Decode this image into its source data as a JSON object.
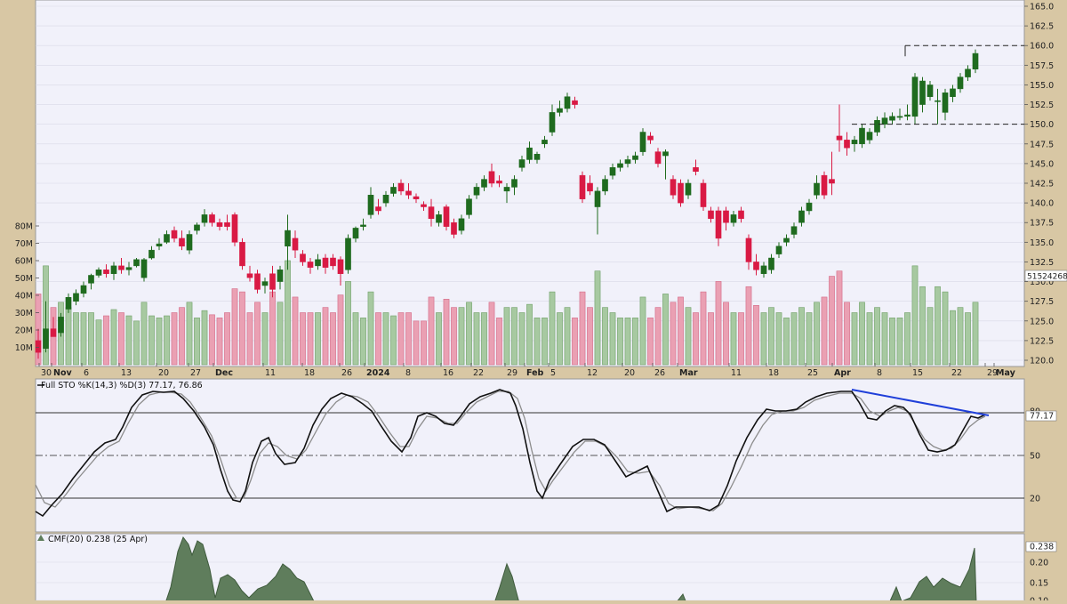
{
  "colors": {
    "frame": "#d8c7a4",
    "panel_bg": "#f1f1fa",
    "grid": "#d9d9e6",
    "up": "#1f6b1f",
    "down": "#d91a44",
    "vol_up": "#a7c9a1",
    "vol_down": "#eaa0b3",
    "stoch_k": "#111111",
    "stoch_d": "#8c8c8c",
    "trendline": "#1f3fd9",
    "cmf_fill": "#5f7d5c"
  },
  "chart_data": [
    {
      "type": "candlestick",
      "y_ticks": [
        "165.0",
        "162.5",
        "160.0",
        "157.5",
        "155.0",
        "152.5",
        "150.0",
        "147.5",
        "145.0",
        "142.5",
        "140.0",
        "137.5",
        "135.0",
        "132.5",
        "130.0",
        "127.5",
        "125.0",
        "122.5",
        "120.0"
      ],
      "ylim": [
        119.5,
        166.5
      ],
      "x_ticks": [
        "30",
        "Nov",
        "6",
        "13",
        "20",
        "27",
        "Dec",
        "11",
        "18",
        "26",
        "2024",
        "8",
        "16",
        "22",
        "29",
        "Feb",
        "5",
        "12",
        "20",
        "26",
        "Mar",
        "11",
        "18",
        "25",
        "Apr",
        "8",
        "15",
        "22",
        "29",
        "May"
      ],
      "volume_ticks": [
        "80M",
        "70M",
        "60M",
        "50M",
        "40M",
        "30M",
        "20M",
        "10M"
      ],
      "volume_ylim": [
        0,
        90
      ],
      "last_volume_label": "51524268",
      "levels": [
        160.0,
        150.0
      ],
      "candles": [
        {
          "date": "Oct 26",
          "o": 122.5,
          "h": 124.0,
          "l": 120.2,
          "c": 121.0
        },
        {
          "date": "Oct 27",
          "o": 121.5,
          "h": 127.5,
          "l": 121.0,
          "c": 124.0
        },
        {
          "date": "Oct 30",
          "o": 124.0,
          "h": 125.5,
          "l": 123.0,
          "c": 123.0
        },
        {
          "date": "Oct 31",
          "o": 123.5,
          "h": 126.0,
          "l": 123.0,
          "c": 125.5
        },
        {
          "date": "Nov 1",
          "o": 126.5,
          "h": 128.5,
          "l": 126.0,
          "c": 128.0
        },
        {
          "date": "Nov 2",
          "o": 127.5,
          "h": 129.0,
          "l": 127.0,
          "c": 128.5
        },
        {
          "date": "Nov 3",
          "o": 128.5,
          "h": 130.0,
          "l": 128.0,
          "c": 129.5
        },
        {
          "date": "Nov 6",
          "o": 129.8,
          "h": 131.0,
          "l": 129.0,
          "c": 130.8
        },
        {
          "date": "Nov 7",
          "o": 130.8,
          "h": 131.8,
          "l": 130.5,
          "c": 131.5
        },
        {
          "date": "Nov 8",
          "o": 131.5,
          "h": 132.2,
          "l": 130.5,
          "c": 131.0
        },
        {
          "date": "Nov 9",
          "o": 131.0,
          "h": 132.5,
          "l": 130.2,
          "c": 132.0
        },
        {
          "date": "Nov 10",
          "o": 132.0,
          "h": 133.0,
          "l": 131.0,
          "c": 131.5
        },
        {
          "date": "Nov 13",
          "o": 131.5,
          "h": 132.5,
          "l": 130.8,
          "c": 131.8
        },
        {
          "date": "Nov 14",
          "o": 132.0,
          "h": 133.0,
          "l": 131.8,
          "c": 132.8
        },
        {
          "date": "Nov 15",
          "o": 130.5,
          "h": 133.0,
          "l": 130.0,
          "c": 132.8
        },
        {
          "date": "Nov 16",
          "o": 133.0,
          "h": 134.5,
          "l": 132.8,
          "c": 134.0
        },
        {
          "date": "Nov 17",
          "o": 134.5,
          "h": 135.5,
          "l": 134.0,
          "c": 134.8
        },
        {
          "date": "Nov 20",
          "o": 135.0,
          "h": 136.5,
          "l": 134.8,
          "c": 136.0
        },
        {
          "date": "Nov 21",
          "o": 136.5,
          "h": 137.0,
          "l": 135.0,
          "c": 135.5
        },
        {
          "date": "Nov 22",
          "o": 135.5,
          "h": 136.5,
          "l": 134.0,
          "c": 134.5
        },
        {
          "date": "Nov 24",
          "o": 134.0,
          "h": 136.5,
          "l": 133.5,
          "c": 136.0
        },
        {
          "date": "Nov 27",
          "o": 136.5,
          "h": 137.5,
          "l": 136.0,
          "c": 137.2
        },
        {
          "date": "Nov 28",
          "o": 137.5,
          "h": 139.2,
          "l": 137.0,
          "c": 138.5
        },
        {
          "date": "Nov 29",
          "o": 138.5,
          "h": 138.8,
          "l": 137.0,
          "c": 137.5
        },
        {
          "date": "Nov 30",
          "o": 137.5,
          "h": 138.0,
          "l": 136.5,
          "c": 137.0
        },
        {
          "date": "Dec 1",
          "o": 137.5,
          "h": 138.5,
          "l": 136.5,
          "c": 137.0
        },
        {
          "date": "Dec 4",
          "o": 138.5,
          "h": 138.8,
          "l": 134.5,
          "c": 135.0
        },
        {
          "date": "Dec 5",
          "o": 135.0,
          "h": 135.5,
          "l": 131.5,
          "c": 132.0
        },
        {
          "date": "Dec 6",
          "o": 131.0,
          "h": 132.0,
          "l": 130.0,
          "c": 130.5
        },
        {
          "date": "Dec 7",
          "o": 131.0,
          "h": 131.5,
          "l": 128.5,
          "c": 129.0
        },
        {
          "date": "Dec 8",
          "o": 129.5,
          "h": 130.5,
          "l": 128.5,
          "c": 130.0
        },
        {
          "date": "Dec 11",
          "o": 131.0,
          "h": 132.0,
          "l": 128.0,
          "c": 129.0
        },
        {
          "date": "Dec 12",
          "o": 130.0,
          "h": 132.0,
          "l": 129.0,
          "c": 131.5
        },
        {
          "date": "Dec 13",
          "o": 134.5,
          "h": 138.5,
          "l": 131.5,
          "c": 136.5
        },
        {
          "date": "Dec 14",
          "o": 135.5,
          "h": 136.5,
          "l": 133.0,
          "c": 134.0
        },
        {
          "date": "Dec 15",
          "o": 133.5,
          "h": 134.0,
          "l": 132.0,
          "c": 132.5
        },
        {
          "date": "Dec 18",
          "o": 132.5,
          "h": 133.0,
          "l": 131.0,
          "c": 131.8
        },
        {
          "date": "Dec 19",
          "o": 132.0,
          "h": 133.5,
          "l": 131.5,
          "c": 132.8
        },
        {
          "date": "Dec 20",
          "o": 133.0,
          "h": 133.5,
          "l": 131.0,
          "c": 131.8
        },
        {
          "date": "Dec 21",
          "o": 133.0,
          "h": 133.5,
          "l": 131.5,
          "c": 132.0
        },
        {
          "date": "Dec 22",
          "o": 132.8,
          "h": 133.2,
          "l": 129.5,
          "c": 131.0
        },
        {
          "date": "Dec 26",
          "o": 131.5,
          "h": 136.0,
          "l": 131.0,
          "c": 135.5
        },
        {
          "date": "Dec 27",
          "o": 135.5,
          "h": 137.0,
          "l": 135.0,
          "c": 136.8
        },
        {
          "date": "Dec 28",
          "o": 137.0,
          "h": 138.0,
          "l": 136.5,
          "c": 137.2
        },
        {
          "date": "Dec 29",
          "o": 138.5,
          "h": 142.0,
          "l": 138.0,
          "c": 141.0
        },
        {
          "date": "Jan 2",
          "o": 139.5,
          "h": 140.5,
          "l": 138.5,
          "c": 139.0
        },
        {
          "date": "Jan 3",
          "o": 140.0,
          "h": 141.5,
          "l": 139.5,
          "c": 141.0
        },
        {
          "date": "Jan 4",
          "o": 141.2,
          "h": 142.5,
          "l": 140.8,
          "c": 142.0
        },
        {
          "date": "Jan 5",
          "o": 142.5,
          "h": 143.0,
          "l": 141.0,
          "c": 141.5
        },
        {
          "date": "Jan 8",
          "o": 141.5,
          "h": 142.5,
          "l": 140.5,
          "c": 141.0
        },
        {
          "date": "Jan 9",
          "o": 140.8,
          "h": 141.2,
          "l": 140.0,
          "c": 140.5
        },
        {
          "date": "Jan 10",
          "o": 139.8,
          "h": 140.2,
          "l": 139.0,
          "c": 139.5
        },
        {
          "date": "Jan 11",
          "o": 139.5,
          "h": 140.5,
          "l": 137.0,
          "c": 138.0
        },
        {
          "date": "Jan 12",
          "o": 137.5,
          "h": 139.0,
          "l": 137.0,
          "c": 138.5
        },
        {
          "date": "Jan 16",
          "o": 139.5,
          "h": 139.8,
          "l": 136.5,
          "c": 137.0
        },
        {
          "date": "Jan 17",
          "o": 137.5,
          "h": 138.0,
          "l": 135.5,
          "c": 136.0
        },
        {
          "date": "Jan 18",
          "o": 136.5,
          "h": 138.5,
          "l": 136.0,
          "c": 138.0
        },
        {
          "date": "Jan 19",
          "o": 138.5,
          "h": 141.0,
          "l": 138.0,
          "c": 140.5
        },
        {
          "date": "Jan 22",
          "o": 141.0,
          "h": 142.5,
          "l": 140.5,
          "c": 142.0
        },
        {
          "date": "Jan 23",
          "o": 142.0,
          "h": 143.5,
          "l": 141.5,
          "c": 143.0
        },
        {
          "date": "Jan 24",
          "o": 144.0,
          "h": 145.0,
          "l": 142.0,
          "c": 142.5
        },
        {
          "date": "Jan 25",
          "o": 142.8,
          "h": 143.5,
          "l": 142.0,
          "c": 142.5
        },
        {
          "date": "Jan 26",
          "o": 141.5,
          "h": 142.5,
          "l": 140.0,
          "c": 142.0
        },
        {
          "date": "Jan 29",
          "o": 142.0,
          "h": 143.5,
          "l": 141.0,
          "c": 143.0
        },
        {
          "date": "Jan 30",
          "o": 144.5,
          "h": 146.0,
          "l": 144.0,
          "c": 145.5
        },
        {
          "date": "Jan 31",
          "o": 145.5,
          "h": 147.8,
          "l": 145.0,
          "c": 147.0
        },
        {
          "date": "Feb 1",
          "o": 145.5,
          "h": 146.5,
          "l": 145.0,
          "c": 146.2
        },
        {
          "date": "Feb 2",
          "o": 147.5,
          "h": 148.5,
          "l": 147.0,
          "c": 148.0
        },
        {
          "date": "Feb 5",
          "o": 149.0,
          "h": 152.5,
          "l": 148.5,
          "c": 151.5
        },
        {
          "date": "Feb 6",
          "o": 151.5,
          "h": 153.0,
          "l": 151.0,
          "c": 152.0
        },
        {
          "date": "Feb 7",
          "o": 152.0,
          "h": 154.0,
          "l": 151.5,
          "c": 153.5
        },
        {
          "date": "Feb 8",
          "o": 153.0,
          "h": 153.5,
          "l": 152.0,
          "c": 152.5
        },
        {
          "date": "Feb 9",
          "o": 143.5,
          "h": 144.0,
          "l": 140.0,
          "c": 140.5
        },
        {
          "date": "Feb 12",
          "o": 142.5,
          "h": 143.5,
          "l": 141.0,
          "c": 141.5
        },
        {
          "date": "Feb 13",
          "o": 139.5,
          "h": 142.0,
          "l": 136.0,
          "c": 141.5
        },
        {
          "date": "Feb 14",
          "o": 141.5,
          "h": 143.5,
          "l": 141.0,
          "c": 143.0
        },
        {
          "date": "Feb 15",
          "o": 143.5,
          "h": 145.0,
          "l": 143.0,
          "c": 144.5
        },
        {
          "date": "Feb 16",
          "o": 144.5,
          "h": 145.5,
          "l": 144.0,
          "c": 145.0
        },
        {
          "date": "Feb 20",
          "o": 145.0,
          "h": 146.0,
          "l": 144.5,
          "c": 145.5
        },
        {
          "date": "Feb 21",
          "o": 145.5,
          "h": 146.5,
          "l": 145.0,
          "c": 146.0
        },
        {
          "date": "Feb 22",
          "o": 146.5,
          "h": 149.5,
          "l": 146.0,
          "c": 149.0
        },
        {
          "date": "Feb 23",
          "o": 148.5,
          "h": 149.0,
          "l": 147.5,
          "c": 148.0
        },
        {
          "date": "Feb 26",
          "o": 146.5,
          "h": 147.0,
          "l": 144.5,
          "c": 145.0
        },
        {
          "date": "Feb 27",
          "o": 146.0,
          "h": 146.8,
          "l": 143.0,
          "c": 146.5
        },
        {
          "date": "Feb 28",
          "o": 143.0,
          "h": 143.5,
          "l": 140.5,
          "c": 141.0
        },
        {
          "date": "Feb 29",
          "o": 142.5,
          "h": 143.0,
          "l": 139.5,
          "c": 140.0
        },
        {
          "date": "Mar 1",
          "o": 141.0,
          "h": 143.0,
          "l": 140.5,
          "c": 142.5
        },
        {
          "date": "Mar 4",
          "o": 144.5,
          "h": 145.5,
          "l": 143.5,
          "c": 144.0
        },
        {
          "date": "Mar 5",
          "o": 142.5,
          "h": 143.0,
          "l": 139.0,
          "c": 139.5
        },
        {
          "date": "Mar 6",
          "o": 139.0,
          "h": 139.5,
          "l": 137.5,
          "c": 138.0
        },
        {
          "date": "Mar 7",
          "o": 139.0,
          "h": 139.5,
          "l": 134.5,
          "c": 135.5
        },
        {
          "date": "Mar 8",
          "o": 139.0,
          "h": 139.5,
          "l": 136.5,
          "c": 137.5
        },
        {
          "date": "Mar 11",
          "o": 137.5,
          "h": 139.0,
          "l": 137.0,
          "c": 138.5
        },
        {
          "date": "Mar 12",
          "o": 139.0,
          "h": 139.5,
          "l": 137.5,
          "c": 138.0
        },
        {
          "date": "Mar 13",
          "o": 135.5,
          "h": 136.0,
          "l": 131.5,
          "c": 132.5
        },
        {
          "date": "Mar 14",
          "o": 132.5,
          "h": 133.5,
          "l": 130.8,
          "c": 131.5
        },
        {
          "date": "Mar 15",
          "o": 131.0,
          "h": 132.5,
          "l": 130.5,
          "c": 132.0
        },
        {
          "date": "Mar 18",
          "o": 131.5,
          "h": 133.5,
          "l": 131.0,
          "c": 133.0
        },
        {
          "date": "Mar 19",
          "o": 133.5,
          "h": 135.0,
          "l": 133.0,
          "c": 134.5
        },
        {
          "date": "Mar 20",
          "o": 135.0,
          "h": 136.0,
          "l": 134.5,
          "c": 135.5
        },
        {
          "date": "Mar 21",
          "o": 136.0,
          "h": 137.5,
          "l": 135.5,
          "c": 137.0
        },
        {
          "date": "Mar 22",
          "o": 137.5,
          "h": 139.5,
          "l": 137.0,
          "c": 139.0
        },
        {
          "date": "Mar 25",
          "o": 139.0,
          "h": 140.5,
          "l": 138.5,
          "c": 140.0
        },
        {
          "date": "Mar 26",
          "o": 141.0,
          "h": 143.5,
          "l": 140.5,
          "c": 142.5
        },
        {
          "date": "Mar 27",
          "o": 143.5,
          "h": 144.0,
          "l": 140.5,
          "c": 141.0
        },
        {
          "date": "Mar 28",
          "o": 143.0,
          "h": 146.5,
          "l": 141.0,
          "c": 142.5
        },
        {
          "date": "Apr 1",
          "o": 148.5,
          "h": 152.5,
          "l": 146.5,
          "c": 148.0
        },
        {
          "date": "Apr 2",
          "o": 148.0,
          "h": 149.0,
          "l": 146.0,
          "c": 147.0
        },
        {
          "date": "Apr 3",
          "o": 147.5,
          "h": 148.5,
          "l": 146.5,
          "c": 148.0
        },
        {
          "date": "Apr 4",
          "o": 147.5,
          "h": 150.0,
          "l": 147.0,
          "c": 149.5
        },
        {
          "date": "Apr 5",
          "o": 148.0,
          "h": 149.5,
          "l": 147.5,
          "c": 149.0
        },
        {
          "date": "Apr 8",
          "o": 149.0,
          "h": 151.0,
          "l": 148.5,
          "c": 150.5
        },
        {
          "date": "Apr 9",
          "o": 150.0,
          "h": 151.5,
          "l": 149.5,
          "c": 150.8
        },
        {
          "date": "Apr 10",
          "o": 150.5,
          "h": 151.5,
          "l": 150.0,
          "c": 151.0
        },
        {
          "date": "Apr 11",
          "o": 151.0,
          "h": 152.0,
          "l": 150.5,
          "c": 151.0
        },
        {
          "date": "Apr 12",
          "o": 151.0,
          "h": 152.5,
          "l": 150.5,
          "c": 151.2
        },
        {
          "date": "Apr 15",
          "o": 151.0,
          "h": 156.5,
          "l": 150.0,
          "c": 156.0
        },
        {
          "date": "Apr 16",
          "o": 152.5,
          "h": 156.0,
          "l": 151.5,
          "c": 155.5
        },
        {
          "date": "Apr 17",
          "o": 153.5,
          "h": 155.5,
          "l": 153.0,
          "c": 155.0
        },
        {
          "date": "Apr 18",
          "o": 153.0,
          "h": 154.5,
          "l": 150.0,
          "c": 153.0
        },
        {
          "date": "Apr 19",
          "o": 151.5,
          "h": 154.5,
          "l": 150.5,
          "c": 154.0
        },
        {
          "date": "Apr 22",
          "o": 153.5,
          "h": 155.0,
          "l": 152.8,
          "c": 154.5
        },
        {
          "date": "Apr 23",
          "o": 154.5,
          "h": 156.5,
          "l": 154.0,
          "c": 156.0
        },
        {
          "date": "Apr 24",
          "o": 156.0,
          "h": 157.5,
          "l": 155.5,
          "c": 157.0
        },
        {
          "date": "Apr 25",
          "o": 157.0,
          "h": 159.5,
          "l": 156.5,
          "c": 159.0
        }
      ]
    },
    {
      "type": "line",
      "title": "Full STO %K(14,3) %D(3) 77.17, 76.86",
      "y_ticks": [
        "80",
        "77.17",
        "50",
        "20"
      ],
      "ylim": [
        0,
        100
      ]
    },
    {
      "type": "area",
      "title": "CMF(20) 0.238 (25 Apr)",
      "y_ticks": [
        "0.238",
        "0.20",
        "0.15",
        "0.10"
      ],
      "ylim": [
        0.05,
        0.25
      ]
    }
  ]
}
